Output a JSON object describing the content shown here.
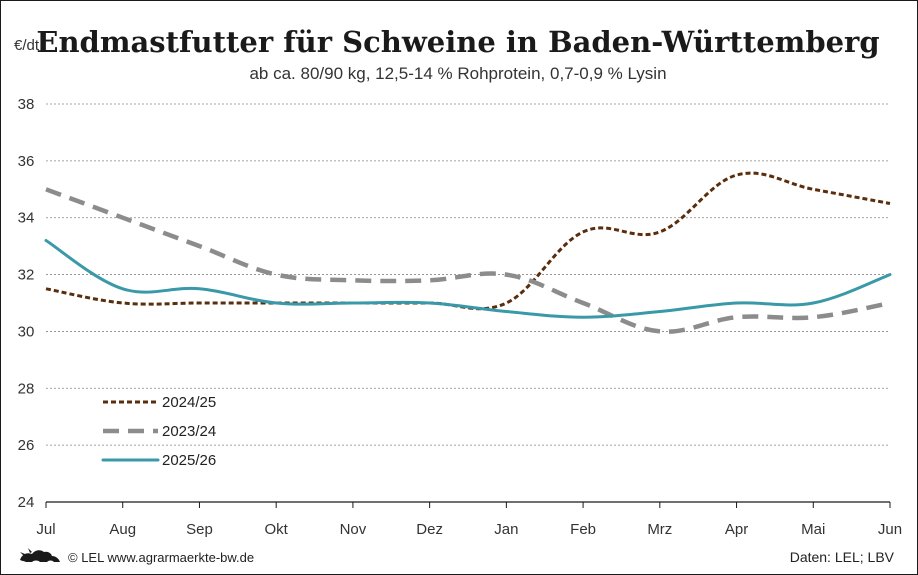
{
  "header": {
    "title": "Endmastfutter für Schweine in Baden-Württemberg",
    "subtitle": "ab ca. 80/90 kg, 12,5-14 % Rohprotein, 0,7-0,9 % Lysin",
    "unit": "€/dt"
  },
  "footer": {
    "credit": "© LEL www.agrarmaerkte-bw.de",
    "source": "Daten: LEL; LBV",
    "logo_icon": "lion-logo-icon"
  },
  "chart_data": {
    "type": "line",
    "categories": [
      "Jul",
      "Aug",
      "Sep",
      "Okt",
      "Nov",
      "Dez",
      "Jan",
      "Feb",
      "Mrz",
      "Apr",
      "Mai",
      "Jun"
    ],
    "ylim": [
      24,
      38
    ],
    "yticks": [
      24,
      26,
      28,
      30,
      32,
      34,
      36,
      38
    ],
    "grid": true,
    "legend_position": "bottom-left",
    "series": [
      {
        "name": "2024/25",
        "style": "dotted",
        "color": "#5a2d0c",
        "values": [
          31.5,
          31.0,
          31.0,
          31.0,
          31.0,
          31.0,
          31.0,
          33.5,
          33.5,
          35.5,
          35.0,
          34.5
        ]
      },
      {
        "name": "2023/24",
        "style": "dashed",
        "color": "#8c8c8c",
        "values": [
          35.0,
          34.0,
          33.0,
          32.0,
          31.8,
          31.8,
          32.0,
          31.0,
          30.0,
          30.5,
          30.5,
          31.0
        ]
      },
      {
        "name": "2025/26",
        "style": "solid",
        "color": "#3a99a8",
        "values": [
          33.2,
          31.5,
          31.5,
          31.0,
          31.0,
          31.0,
          30.7,
          30.5,
          30.7,
          31.0,
          31.0,
          32.0
        ]
      }
    ]
  }
}
